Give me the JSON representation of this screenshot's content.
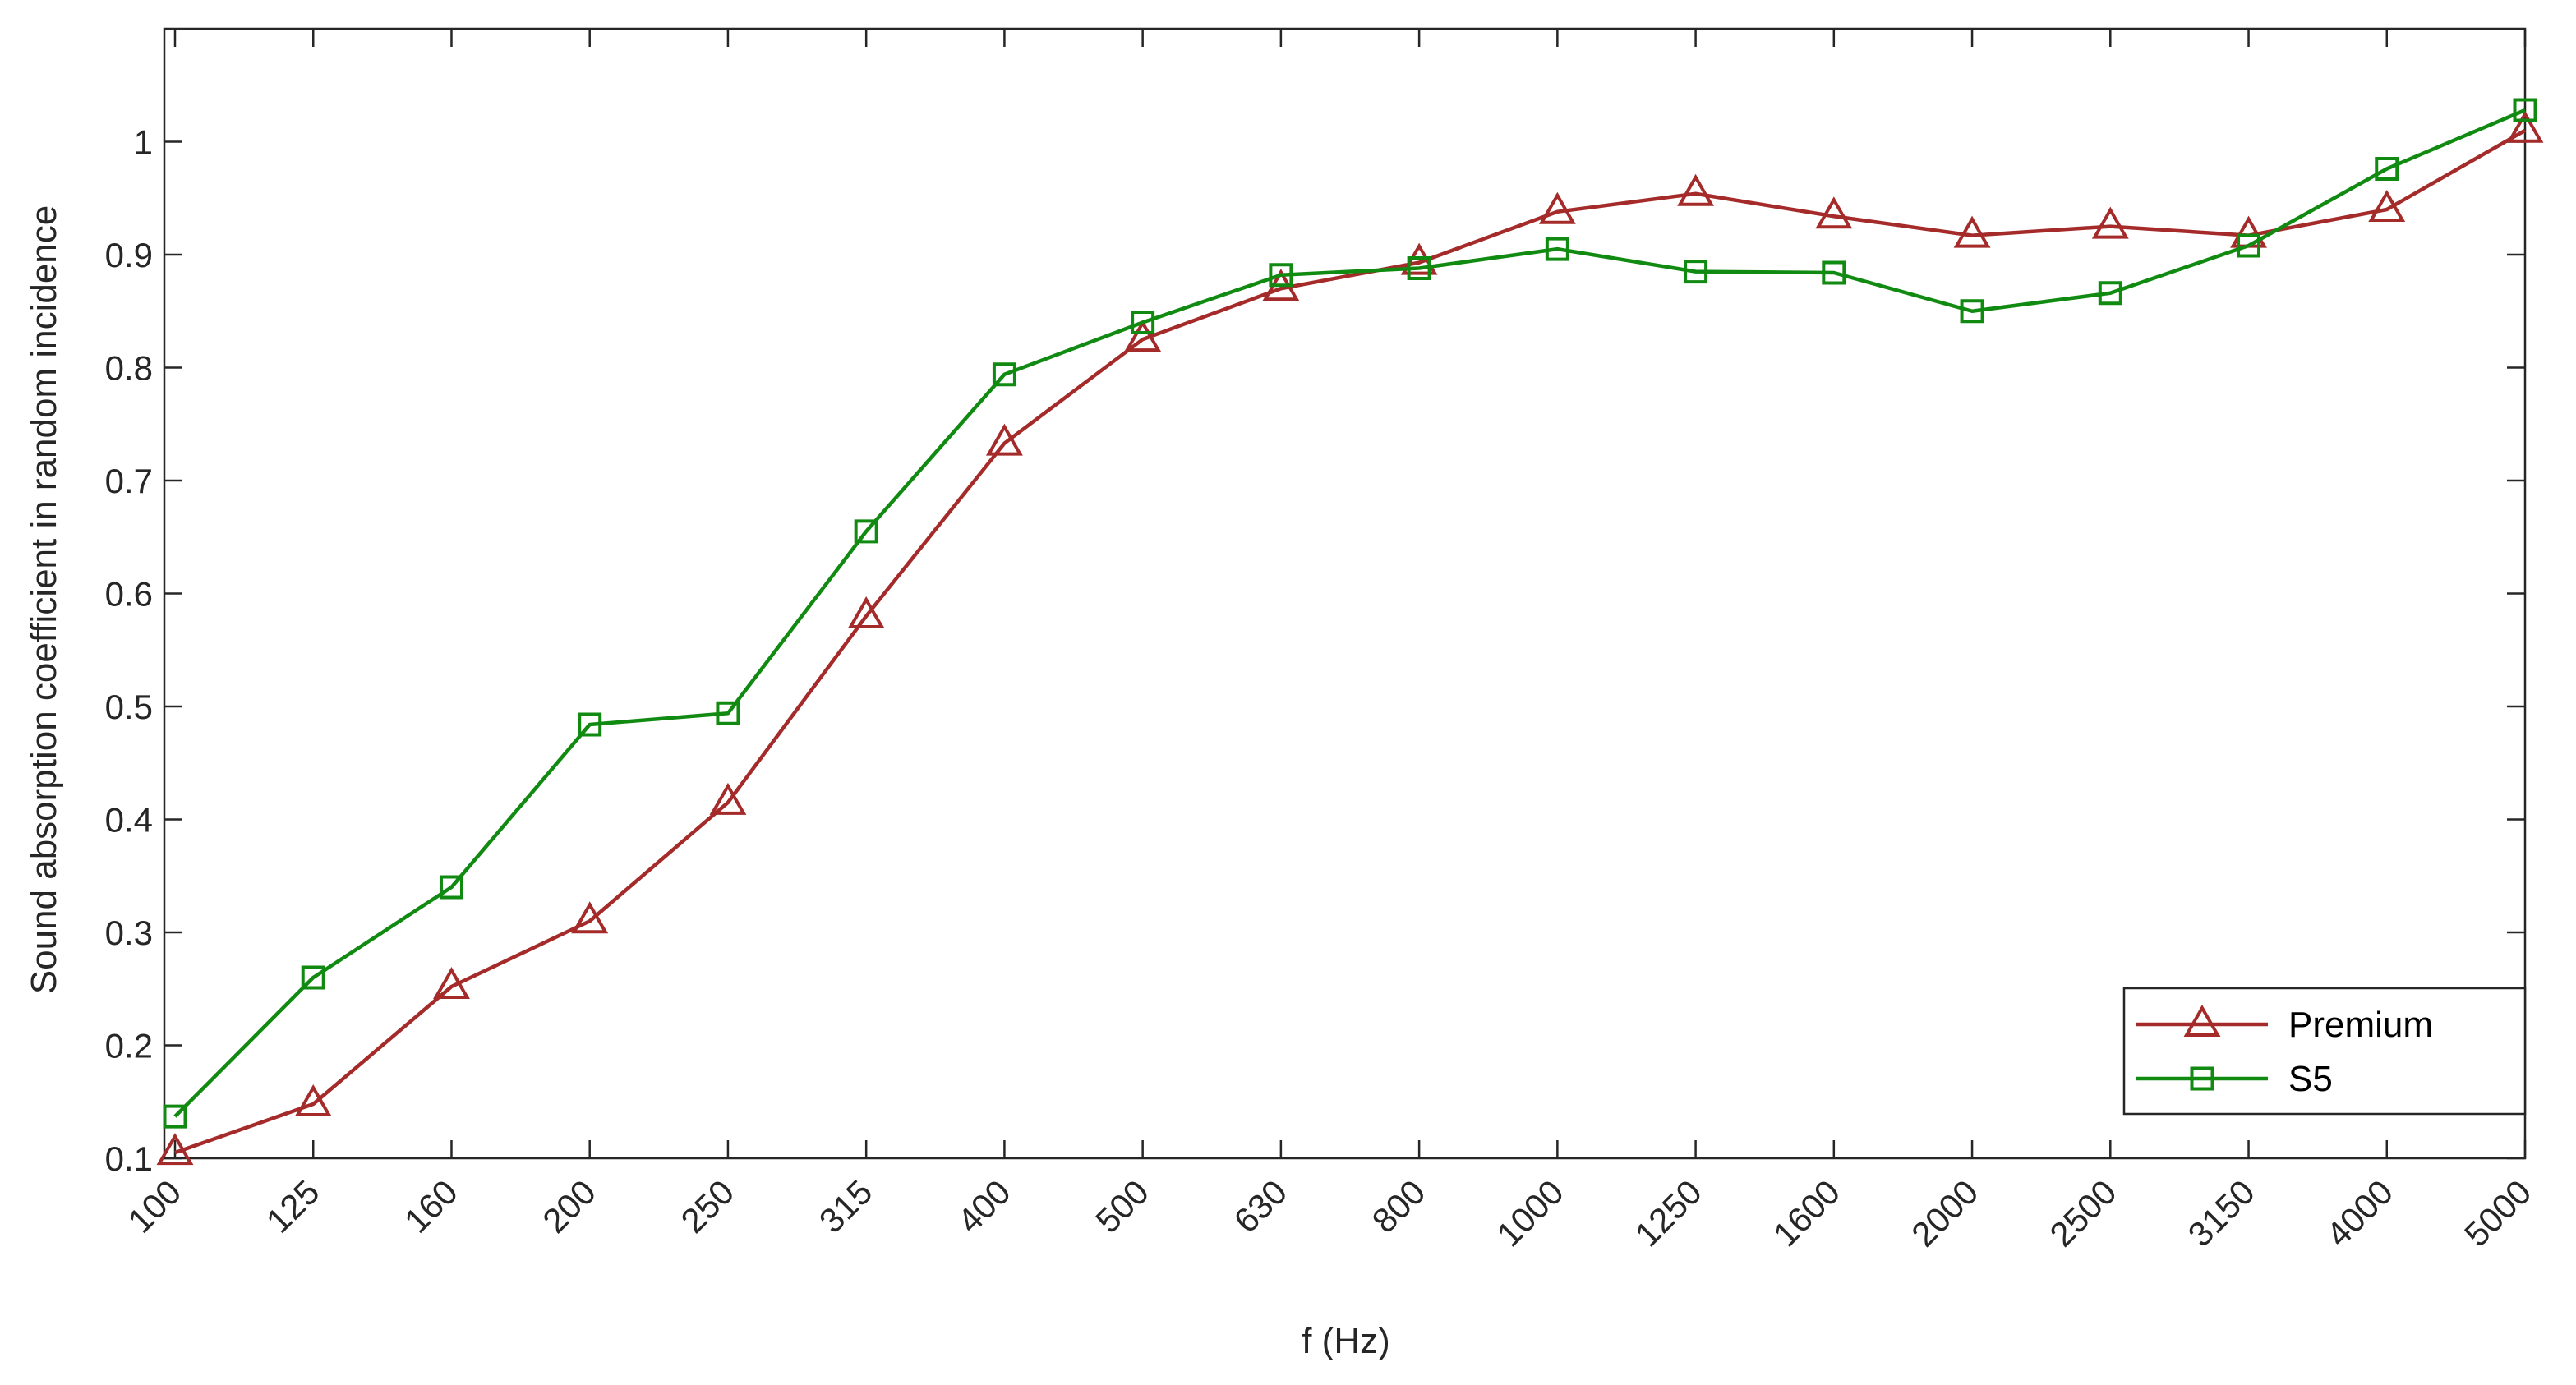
{
  "chart_data": {
    "type": "line",
    "title": "",
    "xlabel": "f (Hz)",
    "ylabel": "Sound absorption coefficient in random incidence",
    "x_scale": "categorical",
    "categories": [
      "100",
      "125",
      "160",
      "200",
      "250",
      "315",
      "400",
      "500",
      "630",
      "800",
      "1000",
      "1250",
      "1600",
      "2000",
      "2500",
      "3150",
      "4000",
      "5000"
    ],
    "ylim": [
      0.1,
      1.1
    ],
    "yticks": [
      "0.1",
      "0.2",
      "0.3",
      "0.4",
      "0.5",
      "0.6",
      "0.7",
      "0.8",
      "0.9",
      "1"
    ],
    "grid": false,
    "legend_position": "bottom-right",
    "series": [
      {
        "name": "Premium",
        "color": "#a52a2a",
        "marker": "triangle",
        "values": [
          0.105,
          0.148,
          0.252,
          0.31,
          0.415,
          0.58,
          0.733,
          0.825,
          0.87,
          0.893,
          0.938,
          0.954,
          0.934,
          0.917,
          0.925,
          0.917,
          0.94,
          1.01
        ]
      },
      {
        "name": "S5",
        "color": "#118a11",
        "marker": "square",
        "values": [
          0.137,
          0.26,
          0.34,
          0.484,
          0.494,
          0.655,
          0.794,
          0.84,
          0.882,
          0.888,
          0.905,
          0.885,
          0.884,
          0.85,
          0.866,
          0.908,
          0.976,
          1.028
        ]
      }
    ]
  }
}
